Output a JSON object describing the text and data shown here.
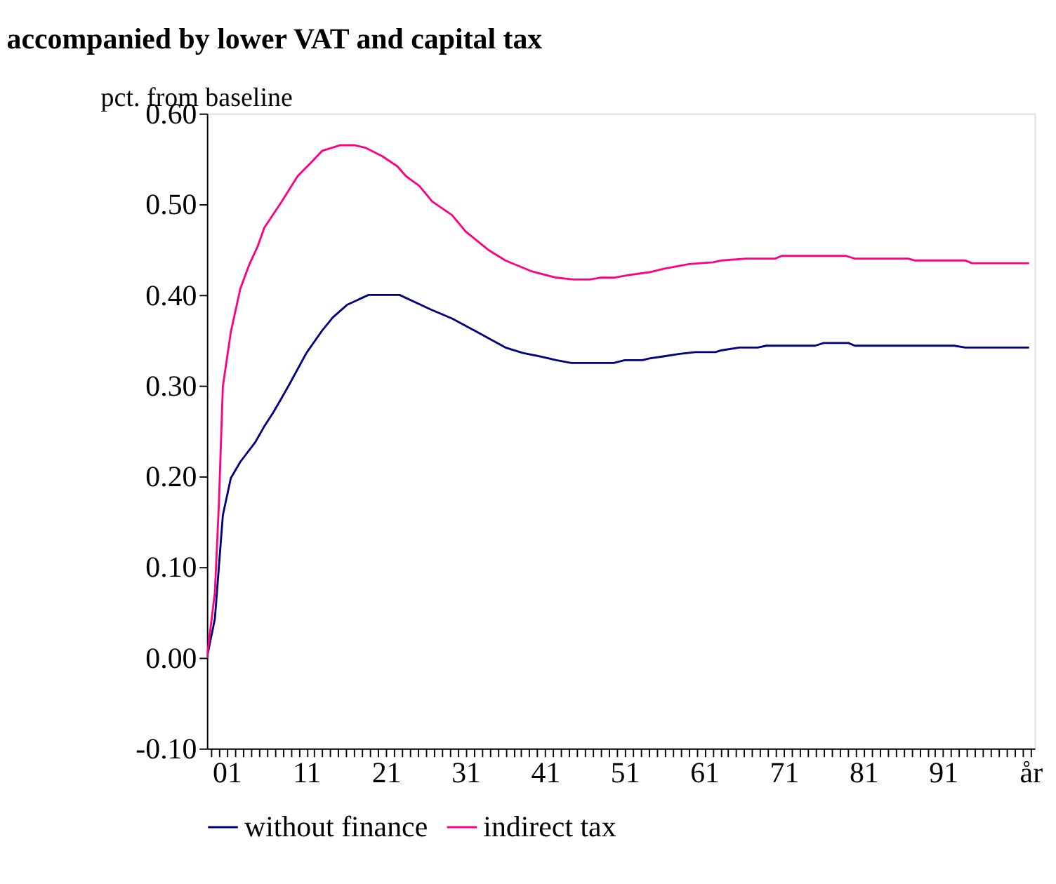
{
  "chart_data": {
    "type": "line",
    "title": "accompanied by lower VAT and capital tax",
    "ylabel": "pct. from baseline",
    "xlim": [
      -1.5,
      102.5
    ],
    "xticks": [
      {
        "value": -1,
        "label": null
      },
      {
        "value": 0,
        "label": null
      },
      {
        "value": 1,
        "label": "01"
      },
      {
        "value": 2,
        "label": null
      },
      {
        "value": 3,
        "label": null
      },
      {
        "value": 4,
        "label": null
      },
      {
        "value": 5,
        "label": null
      },
      {
        "value": 6,
        "label": null
      },
      {
        "value": 7,
        "label": null
      },
      {
        "value": 8,
        "label": null
      },
      {
        "value": 9,
        "label": null
      },
      {
        "value": 10,
        "label": null
      },
      11,
      {
        "value": 12,
        "label": null
      },
      {
        "value": 13,
        "label": null
      },
      {
        "value": 14,
        "label": null
      },
      {
        "value": 15,
        "label": null
      },
      {
        "value": 16,
        "label": null
      },
      {
        "value": 17,
        "label": null
      },
      {
        "value": 18,
        "label": null
      },
      {
        "value": 19,
        "label": null
      },
      {
        "value": 20,
        "label": null
      },
      21,
      {
        "value": 22,
        "label": null
      },
      {
        "value": 23,
        "label": null
      },
      {
        "value": 24,
        "label": null
      },
      {
        "value": 25,
        "label": null
      },
      {
        "value": 26,
        "label": null
      },
      {
        "value": 27,
        "label": null
      },
      {
        "value": 28,
        "label": null
      },
      {
        "value": 29,
        "label": null
      },
      {
        "value": 30,
        "label": null
      },
      31,
      {
        "value": 32,
        "label": null
      },
      {
        "value": 33,
        "label": null
      },
      {
        "value": 34,
        "label": null
      },
      {
        "value": 35,
        "label": null
      },
      {
        "value": 36,
        "label": null
      },
      {
        "value": 37,
        "label": null
      },
      {
        "value": 38,
        "label": null
      },
      {
        "value": 39,
        "label": null
      },
      {
        "value": 40,
        "label": null
      },
      41,
      {
        "value": 42,
        "label": null
      },
      {
        "value": 43,
        "label": null
      },
      {
        "value": 44,
        "label": null
      },
      {
        "value": 45,
        "label": null
      },
      {
        "value": 46,
        "label": null
      },
      {
        "value": 47,
        "label": null
      },
      {
        "value": 48,
        "label": null
      },
      {
        "value": 49,
        "label": null
      },
      {
        "value": 50,
        "label": null
      },
      51,
      {
        "value": 52,
        "label": null
      },
      {
        "value": 53,
        "label": null
      },
      {
        "value": 54,
        "label": null
      },
      {
        "value": 55,
        "label": null
      },
      {
        "value": 56,
        "label": null
      },
      {
        "value": 57,
        "label": null
      },
      {
        "value": 58,
        "label": null
      },
      {
        "value": 59,
        "label": null
      },
      {
        "value": 60,
        "label": null
      },
      61,
      {
        "value": 62,
        "label": null
      },
      {
        "value": 63,
        "label": null
      },
      {
        "value": 64,
        "label": null
      },
      {
        "value": 65,
        "label": null
      },
      {
        "value": 66,
        "label": null
      },
      {
        "value": 67,
        "label": null
      },
      {
        "value": 68,
        "label": null
      },
      {
        "value": 69,
        "label": null
      },
      {
        "value": 70,
        "label": null
      },
      71,
      {
        "value": 72,
        "label": null
      },
      {
        "value": 73,
        "label": null
      },
      {
        "value": 74,
        "label": null
      },
      {
        "value": 75,
        "label": null
      },
      {
        "value": 76,
        "label": null
      },
      {
        "value": 77,
        "label": null
      },
      {
        "value": 78,
        "label": null
      },
      {
        "value": 79,
        "label": null
      },
      {
        "value": 80,
        "label": null
      },
      81,
      {
        "value": 82,
        "label": null
      },
      {
        "value": 83,
        "label": null
      },
      {
        "value": 84,
        "label": null
      },
      {
        "value": 85,
        "label": null
      },
      {
        "value": 86,
        "label": null
      },
      {
        "value": 87,
        "label": null
      },
      {
        "value": 88,
        "label": null
      },
      {
        "value": 89,
        "label": null
      },
      {
        "value": 90,
        "label": null
      },
      91,
      {
        "value": 92,
        "label": null
      },
      {
        "value": 93,
        "label": null
      },
      {
        "value": 94,
        "label": null
      },
      {
        "value": 95,
        "label": null
      },
      {
        "value": 96,
        "label": null
      },
      {
        "value": 97,
        "label": null
      },
      {
        "value": 98,
        "label": null
      },
      {
        "value": 99,
        "label": null
      },
      {
        "value": 100,
        "label": null
      },
      {
        "value": 101,
        "label": null
      },
      {
        "value": 102,
        "label": "år"
      }
    ],
    "ylim": [
      -0.1,
      0.6
    ],
    "yticks": [
      {
        "value": -0.1,
        "label": "-0.10"
      },
      {
        "value": 0,
        "label": "0.00"
      },
      {
        "value": 0.1,
        "label": "0.10"
      },
      {
        "value": 0.2,
        "label": "0.20"
      },
      {
        "value": 0.3,
        "label": "0.30"
      },
      {
        "value": 0.4,
        "label": "0.40"
      },
      {
        "value": 0.5,
        "label": "0.50"
      },
      {
        "value": 0.6,
        "label": "0.60"
      }
    ],
    "grid": false,
    "legend": "bottom",
    "line_style": "solid",
    "series": [
      {
        "name": "without finance",
        "color": "#000080",
        "x": [
          -1.5,
          -0.5,
          0.5,
          1.5,
          2.7,
          4.6,
          5.7,
          6.8,
          7.8,
          8.9,
          11,
          13,
          14.3,
          16.1,
          18.8,
          22.7,
          26.6,
          29.3,
          32.7,
          36,
          38.2,
          40.5,
          42.4,
          44.3,
          46,
          49.6,
          51,
          53.2,
          54.1,
          55.7,
          57.9,
          59.9,
          62.4,
          63.2,
          65.4,
          67.7,
          68.8,
          74.9,
          76,
          79.1,
          79.9,
          92.4,
          93.8,
          101.8
        ],
        "values": [
          0,
          0.043,
          0.157,
          0.198,
          0.216,
          0.238,
          0.255,
          0.27,
          0.285,
          0.302,
          0.336,
          0.361,
          0.375,
          0.389,
          0.4,
          0.4,
          0.384,
          0.374,
          0.358,
          0.342,
          0.336,
          0.332,
          0.328,
          0.325,
          0.325,
          0.325,
          0.328,
          0.328,
          0.33,
          0.332,
          0.335,
          0.337,
          0.337,
          0.339,
          0.342,
          0.342,
          0.344,
          0.344,
          0.347,
          0.347,
          0.344,
          0.344,
          0.342,
          0.342
        ]
      },
      {
        "name": "indirect tax",
        "color": "#ff0080",
        "x": [
          -1.5,
          -0.5,
          0,
          0.5,
          1.5,
          2.7,
          3.8,
          4.9,
          5.7,
          7.9,
          9.9,
          11.6,
          13,
          15.2,
          17.1,
          18.5,
          20.5,
          22.4,
          23.5,
          25.2,
          26.8,
          29.3,
          31,
          33.8,
          36,
          39.3,
          42.4,
          44.6,
          46.6,
          47.9,
          49.6,
          51.6,
          54.1,
          56,
          59.1,
          62.1,
          63.2,
          66.3,
          69.9,
          70.7,
          78.8,
          79.9,
          86.6,
          87.4,
          93.8,
          94.6,
          101.8
        ],
        "values": [
          0,
          0.072,
          0.169,
          0.299,
          0.359,
          0.407,
          0.433,
          0.454,
          0.474,
          0.503,
          0.531,
          0.546,
          0.559,
          0.565,
          0.565,
          0.562,
          0.553,
          0.542,
          0.531,
          0.52,
          0.503,
          0.488,
          0.47,
          0.45,
          0.438,
          0.426,
          0.419,
          0.417,
          0.417,
          0.419,
          0.419,
          0.422,
          0.425,
          0.429,
          0.434,
          0.436,
          0.438,
          0.44,
          0.44,
          0.443,
          0.443,
          0.44,
          0.44,
          0.438,
          0.438,
          0.435,
          0.435
        ]
      }
    ]
  }
}
